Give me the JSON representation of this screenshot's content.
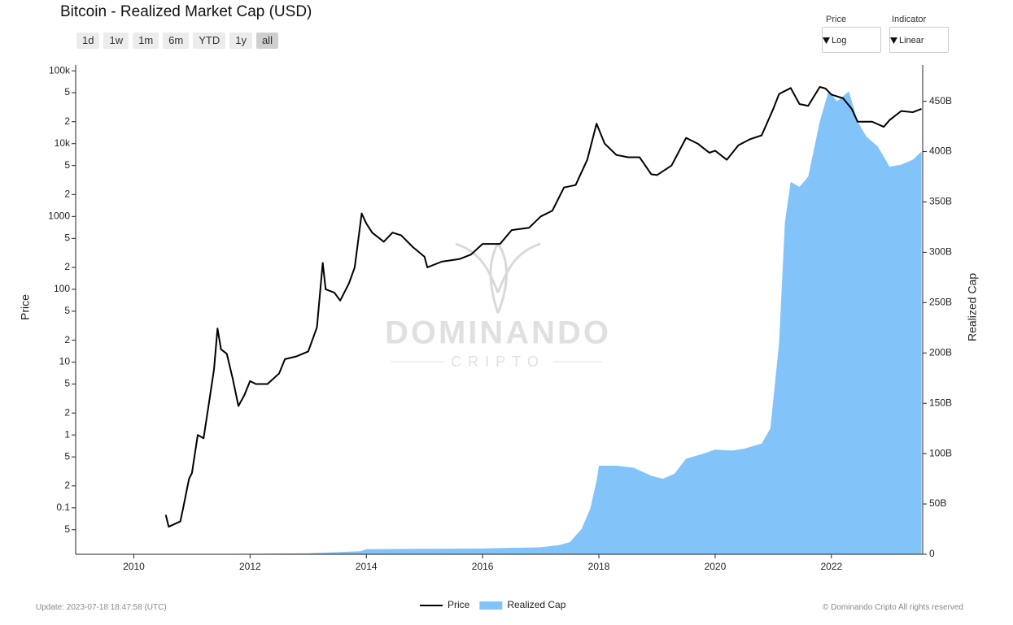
{
  "header": {
    "title": "Bitcoin - Realized Market Cap (USD)"
  },
  "ranges": [
    "1d",
    "1w",
    "1m",
    "6m",
    "YTD",
    "1y",
    "all"
  ],
  "selectors": [
    {
      "label": "Price",
      "value": "Log"
    },
    {
      "label": "Indicator",
      "value": "Linear"
    }
  ],
  "watermark": {
    "title": "DOMINANDO",
    "subtitle": "CRIPTO"
  },
  "footer": {
    "update": "Update: 2023-07-18 18:47:58 (UTC)",
    "copyright": "© Dominando Cripto All rights reserved"
  },
  "chart_data": {
    "type": "line",
    "ylabel": "Price",
    "y2label": "Realized Cap",
    "xlim": [
      2009,
      2023.57
    ],
    "xticks": [
      2010,
      2012,
      2014,
      2016,
      2018,
      2020,
      2022
    ],
    "ylog": true,
    "ylim": [
      0.023,
      120000
    ],
    "yticks": [
      {
        "value": 100000,
        "label": "100k"
      },
      {
        "value": 50000,
        "label": "5"
      },
      {
        "value": 20000,
        "label": "2"
      },
      {
        "value": 10000,
        "label": "10k"
      },
      {
        "value": 5000,
        "label": "5"
      },
      {
        "value": 2000,
        "label": "2"
      },
      1000,
      {
        "value": 500,
        "label": "5"
      },
      {
        "value": 200,
        "label": "2"
      },
      100,
      {
        "value": 50,
        "label": "5"
      },
      {
        "value": 20,
        "label": "2"
      },
      10,
      5,
      2,
      1,
      {
        "value": 0.5,
        "label": "5"
      },
      {
        "value": 0.2,
        "label": "2"
      },
      0.1,
      {
        "value": 0.05,
        "label": "5"
      }
    ],
    "y2lim": [
      0,
      486000000000.0
    ],
    "y2ticks": [
      0,
      {
        "value": 50000000000.0,
        "label": "50B"
      },
      {
        "value": 100000000000.0,
        "label": "100B"
      },
      {
        "value": 150000000000.0,
        "label": "150B"
      },
      {
        "value": 200000000000.0,
        "label": "200B"
      },
      {
        "value": 250000000000.0,
        "label": "250B"
      },
      {
        "value": 300000000000.0,
        "label": "300B"
      },
      {
        "value": 350000000000.0,
        "label": "350B"
      },
      {
        "value": 400000000000.0,
        "label": "400B"
      },
      {
        "value": 450000000000.0,
        "label": "450B"
      }
    ],
    "legend": "bottom",
    "series": [
      {
        "name": "Price",
        "color": "#000000",
        "axis": "y",
        "kind": "line",
        "x": [
          2010.55,
          2010.6,
          2010.8,
          2010.85,
          2010.95,
          2011.0,
          2011.1,
          2011.2,
          2011.3,
          2011.38,
          2011.44,
          2011.5,
          2011.6,
          2011.7,
          2011.8,
          2011.9,
          2012.0,
          2012.1,
          2012.3,
          2012.5,
          2012.6,
          2012.8,
          2013.0,
          2013.15,
          2013.25,
          2013.3,
          2013.45,
          2013.55,
          2013.7,
          2013.8,
          2013.92,
          2014.0,
          2014.1,
          2014.3,
          2014.45,
          2014.6,
          2014.8,
          2015.0,
          2015.05,
          2015.3,
          2015.6,
          2015.8,
          2016.0,
          2016.3,
          2016.5,
          2016.8,
          2017.0,
          2017.2,
          2017.4,
          2017.6,
          2017.8,
          2017.96,
          2018.1,
          2018.3,
          2018.5,
          2018.7,
          2018.9,
          2019.0,
          2019.25,
          2019.5,
          2019.7,
          2019.9,
          2020.0,
          2020.2,
          2020.4,
          2020.6,
          2020.8,
          2021.0,
          2021.1,
          2021.3,
          2021.45,
          2021.6,
          2021.8,
          2021.9,
          2022.0,
          2022.2,
          2022.35,
          2022.45,
          2022.7,
          2022.9,
          2023.0,
          2023.2,
          2023.4,
          2023.55
        ],
        "values": [
          0.08,
          0.055,
          0.065,
          0.1,
          0.25,
          0.3,
          1,
          0.9,
          3,
          8,
          29,
          15,
          13,
          6,
          2.5,
          3.5,
          5.5,
          5,
          5,
          7,
          11,
          12,
          14,
          30,
          230,
          100,
          90,
          70,
          120,
          200,
          1100,
          800,
          600,
          450,
          600,
          550,
          380,
          280,
          200,
          240,
          260,
          300,
          420,
          420,
          650,
          700,
          1000,
          1200,
          2500,
          2700,
          6000,
          18800,
          10000,
          7000,
          6500,
          6500,
          3800,
          3700,
          5000,
          12000,
          10000,
          7500,
          8000,
          6000,
          9500,
          11500,
          13000,
          30000,
          48000,
          58000,
          35000,
          33000,
          60000,
          57000,
          47000,
          42000,
          30000,
          20000,
          20000,
          17000,
          21000,
          28000,
          27000,
          30000
        ]
      },
      {
        "name": "Realized Cap",
        "color": "#82c4fa",
        "axis": "y2",
        "kind": "area",
        "x": [
          2009,
          2011,
          2013,
          2013.9,
          2014,
          2015,
          2016,
          2017,
          2017.3,
          2017.5,
          2017.7,
          2017.85,
          2017.96,
          2018.0,
          2018.3,
          2018.6,
          2018.9,
          2019.1,
          2019.3,
          2019.5,
          2019.8,
          2020.0,
          2020.3,
          2020.5,
          2020.8,
          2020.95,
          2021.1,
          2021.2,
          2021.3,
          2021.45,
          2021.6,
          2021.8,
          2021.95,
          2022.1,
          2022.3,
          2022.45,
          2022.6,
          2022.8,
          2023.0,
          2023.2,
          2023.4,
          2023.55
        ],
        "values": [
          0,
          100000000.0,
          1000000000.0,
          3000000000.0,
          5000000000.0,
          5500000000.0,
          5800000000.0,
          7000000000.0,
          9000000000.0,
          12000000000.0,
          25000000000.0,
          45000000000.0,
          73000000000.0,
          88000000000.0,
          88000000000.0,
          86000000000.0,
          78000000000.0,
          75000000000.0,
          80000000000.0,
          95000000000.0,
          100000000000.0,
          104000000000.0,
          103000000000.0,
          105000000000.0,
          110000000000.0,
          125000000000.0,
          210000000000.0,
          330000000000.0,
          370000000000.0,
          365000000000.0,
          375000000000.0,
          430000000000.0,
          460000000000.0,
          450000000000.0,
          460000000000.0,
          430000000000.0,
          415000000000.0,
          405000000000.0,
          385000000000.0,
          387000000000.0,
          392000000000.0,
          400000000000.0
        ]
      }
    ]
  }
}
